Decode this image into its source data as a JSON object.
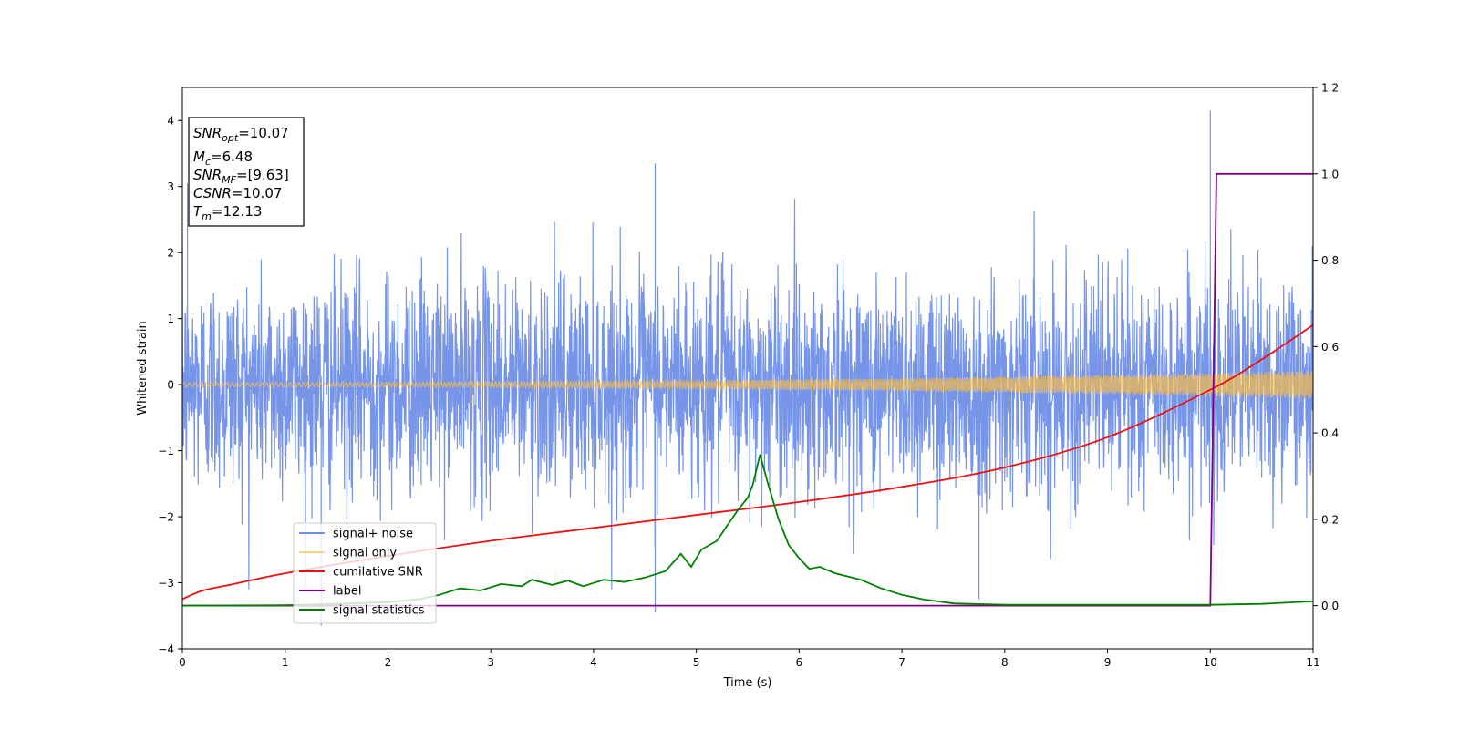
{
  "chart_data": {
    "type": "line",
    "xlabel": "Time (s)",
    "ylabel": "Whitened strain",
    "xlim": [
      0,
      11
    ],
    "ylim": [
      -4,
      4.5
    ],
    "y2lim": [
      -0.1,
      1.2
    ],
    "xticks": [
      "0",
      "1",
      "2",
      "3",
      "4",
      "5",
      "6",
      "7",
      "8",
      "9",
      "10",
      "11"
    ],
    "yticks": [
      "−4",
      "−3",
      "−2",
      "−1",
      "0",
      "1",
      "2",
      "3",
      "4"
    ],
    "y2ticks": [
      "0.0",
      "0.2",
      "0.4",
      "0.6",
      "0.8",
      "1.0",
      "1.2"
    ],
    "grid": false,
    "legend_position": "lower-left",
    "annotation": {
      "lines": [
        {
          "base": "SNR",
          "sub": "opt",
          "rest": "=10.07"
        },
        {
          "base": "M",
          "sub": "c",
          "rest": "=6.48"
        },
        {
          "base": "SNR",
          "sub": "MF",
          "rest": "=[9.63]"
        },
        {
          "base": "CSNR",
          "sub": "",
          "rest": "=10.07"
        },
        {
          "base": "T",
          "sub": "m",
          "rest": "=12.13"
        }
      ]
    },
    "series": [
      {
        "name": "signal+ noise",
        "color": "#6f8fe8",
        "axis": "left",
        "kind": "noise",
        "envelope_sigma": 0.82,
        "peaks": [
          [
            0.05,
            3.05
          ],
          [
            4.6,
            3.35
          ],
          [
            10.0,
            4.15
          ],
          [
            1.35,
            -3.65
          ],
          [
            4.6,
            -3.45
          ],
          [
            7.75,
            -3.25
          ]
        ]
      },
      {
        "name": "signal only",
        "color": "#ffbf40",
        "axis": "left",
        "kind": "chirp",
        "amplitude_start": 0.03,
        "amplitude_end": 0.21
      },
      {
        "name": "cumilative SNR",
        "color": "#ee1111",
        "axis": "right",
        "x": [
          0,
          0.2,
          0.5,
          1,
          2,
          3,
          4,
          5,
          6,
          7,
          8,
          9,
          10,
          10.5,
          11
        ],
        "y": [
          0.015,
          0.035,
          0.05,
          0.075,
          0.115,
          0.15,
          0.18,
          0.21,
          0.24,
          0.275,
          0.32,
          0.39,
          0.5,
          0.57,
          0.65
        ]
      },
      {
        "name": "label",
        "color": "#800080",
        "axis": "right",
        "x": [
          0,
          10,
          10.06,
          11
        ],
        "y": [
          0,
          0,
          1,
          1
        ]
      },
      {
        "name": "signal statistics",
        "color": "#008000",
        "axis": "right",
        "x": [
          0,
          1,
          1.5,
          2,
          2.3,
          2.5,
          2.7,
          2.9,
          3.1,
          3.3,
          3.4,
          3.6,
          3.75,
          3.9,
          4.1,
          4.3,
          4.5,
          4.7,
          4.85,
          4.95,
          5.05,
          5.2,
          5.4,
          5.5,
          5.55,
          5.62,
          5.7,
          5.8,
          5.9,
          6.0,
          6.1,
          6.2,
          6.35,
          6.6,
          6.8,
          7.0,
          7.2,
          7.5,
          8,
          9,
          10,
          10.5,
          11
        ],
        "y": [
          0,
          0.001,
          0.004,
          0.008,
          0.015,
          0.025,
          0.04,
          0.035,
          0.05,
          0.045,
          0.06,
          0.048,
          0.058,
          0.045,
          0.06,
          0.055,
          0.065,
          0.08,
          0.12,
          0.09,
          0.13,
          0.15,
          0.22,
          0.25,
          0.28,
          0.35,
          0.28,
          0.2,
          0.14,
          0.11,
          0.085,
          0.09,
          0.075,
          0.06,
          0.04,
          0.025,
          0.015,
          0.005,
          0.002,
          0.002,
          0.002,
          0.004,
          0.01
        ]
      }
    ]
  }
}
